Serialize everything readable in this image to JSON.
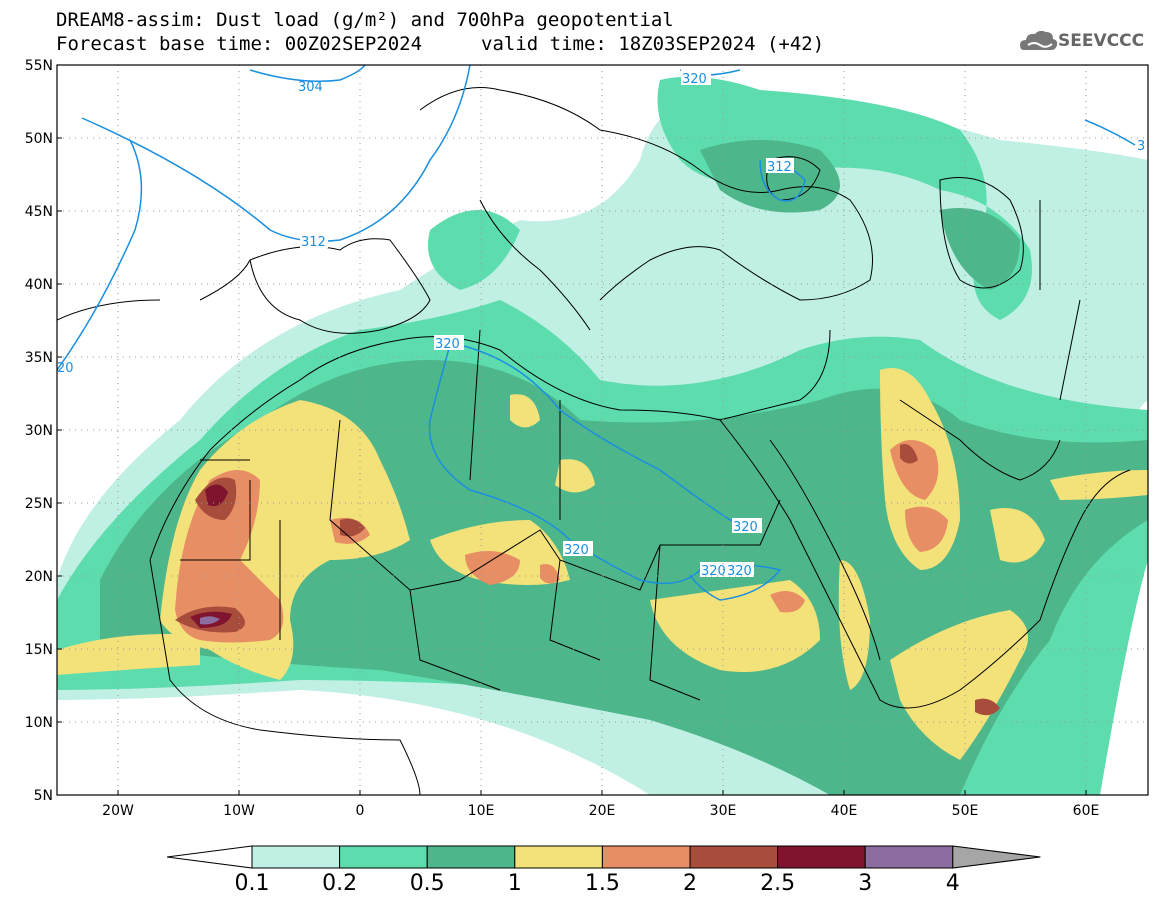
{
  "header": {
    "line1": "DREAM8-assim: Dust load (g/m²) and 700hPa geopotential",
    "line2_base": "Forecast base time: 00Z02SEP2024",
    "line2_valid": "valid time: 18Z03SEP2024 (+42)"
  },
  "logo": {
    "text": "SEEVCCC",
    "icon": "cloud-logo-icon"
  },
  "map": {
    "lat_labels": [
      "55N",
      "50N",
      "45N",
      "40N",
      "35N",
      "30N",
      "25N",
      "20N",
      "15N",
      "10N",
      "5N"
    ],
    "lon_labels": [
      "20W",
      "10W",
      "0",
      "10E",
      "20E",
      "30E",
      "40E",
      "50E",
      "60E"
    ],
    "contour_labels": [
      "304",
      "312",
      "320",
      "320",
      "312",
      "320",
      "320",
      "320",
      "320",
      "20",
      "3"
    ]
  },
  "colorbar": {
    "labels": [
      "0.1",
      "0.2",
      "0.5",
      "1",
      "1.5",
      "2",
      "2.5",
      "3",
      "4"
    ],
    "colors": [
      "#c0efe4",
      "#5ddcae",
      "#4db68b",
      "#f3e27a",
      "#e88e64",
      "#a84d3c",
      "#80132e",
      "#8d6c9f",
      "#a6a6a6"
    ],
    "under_color": "#ffffff"
  }
}
